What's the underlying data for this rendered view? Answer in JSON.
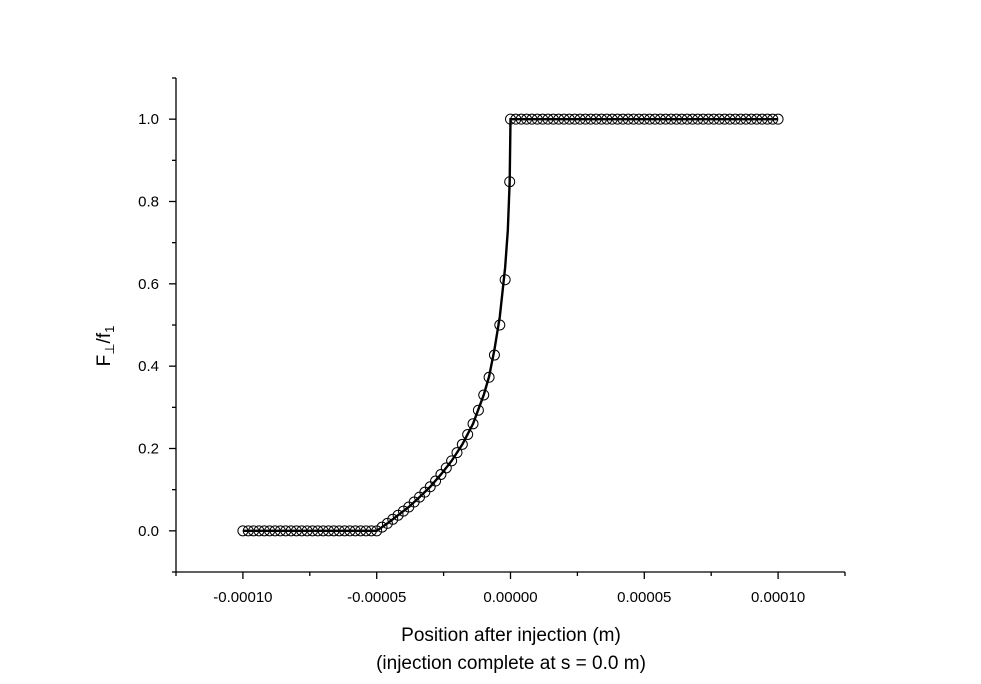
{
  "chart_data": {
    "type": "line",
    "title": "",
    "xlabel": "Position after injection (m)",
    "xlabel_line2": "(injection complete at s = 0.0 m)",
    "ylabel": {
      "main": "F",
      "sub1": "⊥",
      "mid": "/f",
      "sub2": "1"
    },
    "xlim": [
      -0.000125,
      0.000125
    ],
    "ylim": [
      -0.1,
      1.1
    ],
    "grid": false,
    "legend": "none",
    "x_ticks": [
      {
        "value": -0.0001,
        "label": "-0.00010"
      },
      {
        "value": -5e-05,
        "label": "-0.00005"
      },
      {
        "value": 0.0,
        "label": "0.00000"
      },
      {
        "value": 5e-05,
        "label": "0.00005"
      },
      {
        "value": 0.0001,
        "label": "0.00010"
      }
    ],
    "y_ticks": [
      {
        "value": 0.0,
        "label": "0.0"
      },
      {
        "value": 0.2,
        "label": "0.2"
      },
      {
        "value": 0.4,
        "label": "0.4"
      },
      {
        "value": 0.6,
        "label": "0.6"
      },
      {
        "value": 0.8,
        "label": "0.8"
      },
      {
        "value": 1.0,
        "label": "1.0"
      }
    ],
    "series": [
      {
        "style": "line",
        "color": "#000000",
        "points": [
          [
            -0.0001,
            0.0
          ],
          [
            -5e-05,
            0.0
          ],
          [
            -4.6e-05,
            0.018
          ],
          [
            -4.2e-05,
            0.038
          ],
          [
            -3.8e-05,
            0.058
          ],
          [
            -3.4e-05,
            0.082
          ],
          [
            -3e-05,
            0.107
          ],
          [
            -2.6e-05,
            0.137
          ],
          [
            -2.2e-05,
            0.17
          ],
          [
            -1.8e-05,
            0.21
          ],
          [
            -1.4e-05,
            0.26
          ],
          [
            -1e-05,
            0.33
          ],
          [
            -8e-06,
            0.375
          ],
          [
            -6e-06,
            0.44
          ],
          [
            -4e-06,
            0.52
          ],
          [
            -2e-06,
            0.64
          ],
          [
            -1e-06,
            0.73
          ],
          [
            -3e-07,
            0.85
          ],
          [
            0.0,
            1.0
          ],
          [
            0.0001,
            1.0
          ]
        ]
      },
      {
        "style": "open-circle-markers",
        "color": "#000000",
        "points": [
          [
            -0.0001,
            0.0
          ],
          [
            -9.8e-05,
            0.0
          ],
          [
            -9.6e-05,
            0.0
          ],
          [
            -9.4e-05,
            0.0
          ],
          [
            -9.2e-05,
            0.0
          ],
          [
            -9e-05,
            0.0
          ],
          [
            -8.8e-05,
            0.0
          ],
          [
            -8.6e-05,
            0.0
          ],
          [
            -8.4e-05,
            0.0
          ],
          [
            -8.2e-05,
            0.0
          ],
          [
            -8e-05,
            0.0
          ],
          [
            -7.8e-05,
            0.0
          ],
          [
            -7.6e-05,
            0.0
          ],
          [
            -7.4e-05,
            0.0
          ],
          [
            -7.2e-05,
            0.0
          ],
          [
            -7e-05,
            0.0
          ],
          [
            -6.8e-05,
            0.0
          ],
          [
            -6.6e-05,
            0.0
          ],
          [
            -6.4e-05,
            0.0
          ],
          [
            -6.2e-05,
            0.0
          ],
          [
            -6e-05,
            0.0
          ],
          [
            -5.8e-05,
            0.0
          ],
          [
            -5.6e-05,
            0.0
          ],
          [
            -5.4e-05,
            0.0
          ],
          [
            -5.2e-05,
            0.0
          ],
          [
            -5e-05,
            0.0
          ],
          [
            -4.8e-05,
            0.009
          ],
          [
            -4.6e-05,
            0.018
          ],
          [
            -4.4e-05,
            0.028
          ],
          [
            -4.2e-05,
            0.038
          ],
          [
            -4e-05,
            0.048
          ],
          [
            -3.8e-05,
            0.058
          ],
          [
            -3.6e-05,
            0.07
          ],
          [
            -3.4e-05,
            0.082
          ],
          [
            -3.2e-05,
            0.094
          ],
          [
            -3e-05,
            0.107
          ],
          [
            -2.8e-05,
            0.121
          ],
          [
            -2.6e-05,
            0.137
          ],
          [
            -2.4e-05,
            0.153
          ],
          [
            -2.2e-05,
            0.17
          ],
          [
            -2e-05,
            0.19
          ],
          [
            -1.8e-05,
            0.21
          ],
          [
            -1.6e-05,
            0.234
          ],
          [
            -1.4e-05,
            0.26
          ],
          [
            -1.2e-05,
            0.293
          ],
          [
            -1e-05,
            0.33
          ],
          [
            -8e-06,
            0.373
          ],
          [
            -6e-06,
            0.427
          ],
          [
            -4e-06,
            0.5
          ],
          [
            -2e-06,
            0.61
          ],
          [
            -3e-07,
            0.848
          ],
          [
            0.0,
            1.0
          ],
          [
            2e-06,
            1.0
          ],
          [
            4e-06,
            1.0
          ],
          [
            6e-06,
            1.0
          ],
          [
            8e-06,
            1.0
          ],
          [
            1e-05,
            1.0
          ],
          [
            1.2e-05,
            1.0
          ],
          [
            1.4e-05,
            1.0
          ],
          [
            1.6e-05,
            1.0
          ],
          [
            1.8e-05,
            1.0
          ],
          [
            2e-05,
            1.0
          ],
          [
            2.2e-05,
            1.0
          ],
          [
            2.4e-05,
            1.0
          ],
          [
            2.6e-05,
            1.0
          ],
          [
            2.8e-05,
            1.0
          ],
          [
            3e-05,
            1.0
          ],
          [
            3.2e-05,
            1.0
          ],
          [
            3.4e-05,
            1.0
          ],
          [
            3.6e-05,
            1.0
          ],
          [
            3.8e-05,
            1.0
          ],
          [
            4e-05,
            1.0
          ],
          [
            4.2e-05,
            1.0
          ],
          [
            4.4e-05,
            1.0
          ],
          [
            4.6e-05,
            1.0
          ],
          [
            4.8e-05,
            1.0
          ],
          [
            5e-05,
            1.0
          ],
          [
            5.2e-05,
            1.0
          ],
          [
            5.4e-05,
            1.0
          ],
          [
            5.6e-05,
            1.0
          ],
          [
            5.8e-05,
            1.0
          ],
          [
            6e-05,
            1.0
          ],
          [
            6.2e-05,
            1.0
          ],
          [
            6.4e-05,
            1.0
          ],
          [
            6.6e-05,
            1.0
          ],
          [
            6.8e-05,
            1.0
          ],
          [
            7e-05,
            1.0
          ],
          [
            7.2e-05,
            1.0
          ],
          [
            7.4e-05,
            1.0
          ],
          [
            7.6e-05,
            1.0
          ],
          [
            7.8e-05,
            1.0
          ],
          [
            8e-05,
            1.0
          ],
          [
            8.2e-05,
            1.0
          ],
          [
            8.4e-05,
            1.0
          ],
          [
            8.6e-05,
            1.0
          ],
          [
            8.8e-05,
            1.0
          ],
          [
            9e-05,
            1.0
          ],
          [
            9.2e-05,
            1.0
          ],
          [
            9.4e-05,
            1.0
          ],
          [
            9.6e-05,
            1.0
          ],
          [
            9.8e-05,
            1.0
          ],
          [
            0.0001,
            1.0
          ]
        ]
      }
    ]
  }
}
